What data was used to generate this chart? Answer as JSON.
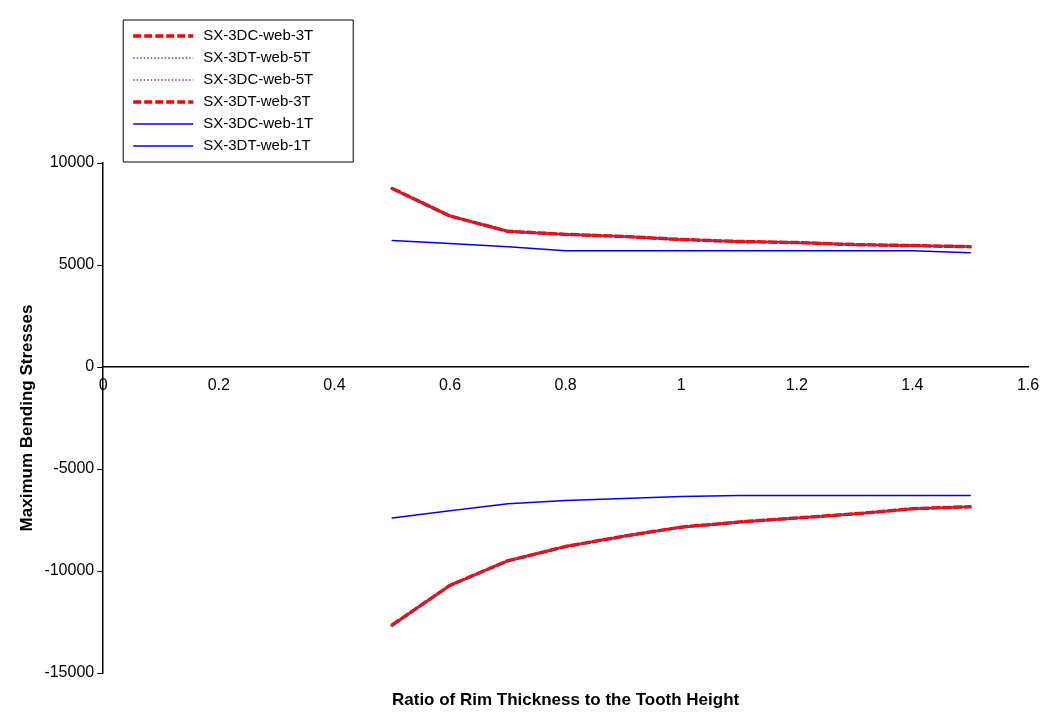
{
  "chart_data": {
    "type": "line",
    "xlabel": "Ratio of Rim Thickness to the Tooth Height",
    "ylabel": "Maximum Bending Stresses",
    "x": [
      0.5,
      0.6,
      0.7,
      0.8,
      0.9,
      1.0,
      1.1,
      1.2,
      1.3,
      1.4,
      1.5
    ],
    "series": [
      {
        "name": "SX-3DC-web-3T",
        "color": "#ff0000",
        "line_style": "dashed",
        "values": [
          -12650,
          -10700,
          -9500,
          -8800,
          -8300,
          -7850,
          -7600,
          -7400,
          -7200,
          -6950,
          -6850
        ]
      },
      {
        "name": "SX-3DT-web-5T",
        "color": "#993366",
        "line_style": "dotted",
        "values": [
          8750,
          7400,
          6650,
          6500,
          6400,
          6250,
          6150,
          6100,
          6000,
          5950,
          5900
        ]
      },
      {
        "name": "SX-3DC-web-5T",
        "color": "#993366",
        "line_style": "dotted",
        "values": [
          -12650,
          -10700,
          -9500,
          -8800,
          -8300,
          -7850,
          -7600,
          -7400,
          -7200,
          -6950,
          -6850
        ]
      },
      {
        "name": "SX-3DT-web-3T",
        "color": "#ff0000",
        "line_style": "dashed",
        "values": [
          8750,
          7400,
          6650,
          6500,
          6400,
          6250,
          6150,
          6100,
          6000,
          5950,
          5900
        ]
      },
      {
        "name": "SX-3DC-web-1T",
        "color": "#0000ff",
        "line_style": "solid",
        "values": [
          -7400,
          -7050,
          -6700,
          -6550,
          -6450,
          -6350,
          -6300,
          -6300,
          -6300,
          -6300,
          -6300
        ]
      },
      {
        "name": "SX-3DT-web-1T",
        "color": "#0000ff",
        "line_style": "solid",
        "values": [
          6200,
          6050,
          5900,
          5700,
          5700,
          5700,
          5700,
          5700,
          5700,
          5700,
          5600
        ]
      }
    ],
    "xlim": [
      0,
      1.6
    ],
    "xticks": [
      0,
      0.2,
      0.4,
      0.6,
      0.8,
      1,
      1.2,
      1.4,
      1.6
    ],
    "ylim": [
      -15000,
      10000
    ],
    "yticks": [
      -15000,
      -10000,
      -5000,
      0,
      5000,
      10000
    ],
    "grid": false,
    "legend": "top left",
    "marker": "none"
  }
}
